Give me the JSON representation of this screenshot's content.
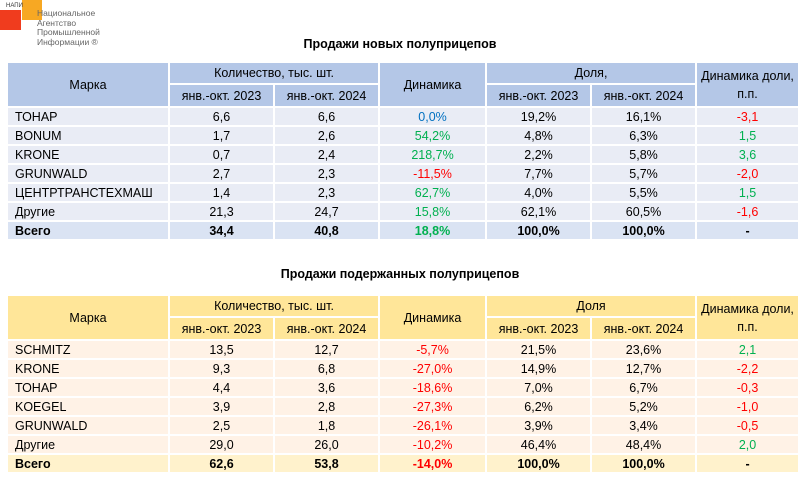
{
  "logo": {
    "abbr": "НАПИ",
    "name": "Национальное Агентство Промышленной Информации ®"
  },
  "colors": {
    "positive": "#00b050",
    "negative": "#ff0000",
    "zero": "#0070c0",
    "blue_header": "#b4c7e7",
    "yellow_header": "#ffe699"
  },
  "tables": [
    {
      "title": "Продажи новых полуприцепов",
      "headers": {
        "brand": "Марка",
        "qty": "Количество, тыс. шт.",
        "period_2023": "янв.-окт. 2023",
        "period_2024": "янв.-окт. 2024",
        "dynamics": "Динамика",
        "share": "Доля,",
        "share_dyn": "Динамика доли, п.п."
      },
      "rows": [
        {
          "brand": "ТОНАР",
          "q2023": "6,6",
          "q2024": "6,6",
          "dyn": "0,0%",
          "dyn_sign": "zero",
          "s2023": "19,2%",
          "s2024": "16,1%",
          "sdyn": "-3,1",
          "sdyn_sign": "neg"
        },
        {
          "brand": "BONUM",
          "q2023": "1,7",
          "q2024": "2,6",
          "dyn": "54,2%",
          "dyn_sign": "pos",
          "s2023": "4,8%",
          "s2024": "6,3%",
          "sdyn": "1,5",
          "sdyn_sign": "pos"
        },
        {
          "brand": "KRONE",
          "q2023": "0,7",
          "q2024": "2,4",
          "dyn": "218,7%",
          "dyn_sign": "pos",
          "s2023": "2,2%",
          "s2024": "5,8%",
          "sdyn": "3,6",
          "sdyn_sign": "pos"
        },
        {
          "brand": "GRUNWALD",
          "q2023": "2,7",
          "q2024": "2,3",
          "dyn": "-11,5%",
          "dyn_sign": "neg",
          "s2023": "7,7%",
          "s2024": "5,7%",
          "sdyn": "-2,0",
          "sdyn_sign": "neg"
        },
        {
          "brand": "ЦЕНТРТРАНСТЕХМАШ",
          "q2023": "1,4",
          "q2024": "2,3",
          "dyn": "62,7%",
          "dyn_sign": "pos",
          "s2023": "4,0%",
          "s2024": "5,5%",
          "sdyn": "1,5",
          "sdyn_sign": "pos"
        },
        {
          "brand": "Другие",
          "q2023": "21,3",
          "q2024": "24,7",
          "dyn": "15,8%",
          "dyn_sign": "pos",
          "s2023": "62,1%",
          "s2024": "60,5%",
          "sdyn": "-1,6",
          "sdyn_sign": "neg"
        }
      ],
      "total": {
        "brand": "Всего",
        "q2023": "34,4",
        "q2024": "40,8",
        "dyn": "18,8%",
        "dyn_sign": "pos",
        "s2023": "100,0%",
        "s2024": "100,0%",
        "sdyn": "-",
        "sdyn_sign": ""
      }
    },
    {
      "title": "Продажи подержанных полуприцепов",
      "headers": {
        "brand": "Марка",
        "qty": "Количество, тыс. шт.",
        "period_2023": "янв.-окт. 2023",
        "period_2024": "янв.-окт. 2024",
        "dynamics": "Динамика",
        "share": "Доля",
        "share_dyn": "Динамика доли, п.п."
      },
      "rows": [
        {
          "brand": "SCHMITZ",
          "q2023": "13,5",
          "q2024": "12,7",
          "dyn": "-5,7%",
          "dyn_sign": "neg",
          "s2023": "21,5%",
          "s2024": "23,6%",
          "sdyn": "2,1",
          "sdyn_sign": "pos"
        },
        {
          "brand": "KRONE",
          "q2023": "9,3",
          "q2024": "6,8",
          "dyn": "-27,0%",
          "dyn_sign": "neg",
          "s2023": "14,9%",
          "s2024": "12,7%",
          "sdyn": "-2,2",
          "sdyn_sign": "neg"
        },
        {
          "brand": "ТОНАР",
          "q2023": "4,4",
          "q2024": "3,6",
          "dyn": "-18,6%",
          "dyn_sign": "neg",
          "s2023": "7,0%",
          "s2024": "6,7%",
          "sdyn": "-0,3",
          "sdyn_sign": "neg"
        },
        {
          "brand": "KOEGEL",
          "q2023": "3,9",
          "q2024": "2,8",
          "dyn": "-27,3%",
          "dyn_sign": "neg",
          "s2023": "6,2%",
          "s2024": "5,2%",
          "sdyn": "-1,0",
          "sdyn_sign": "neg"
        },
        {
          "brand": "GRUNWALD",
          "q2023": "2,5",
          "q2024": "1,8",
          "dyn": "-26,1%",
          "dyn_sign": "neg",
          "s2023": "3,9%",
          "s2024": "3,4%",
          "sdyn": "-0,5",
          "sdyn_sign": "neg"
        },
        {
          "brand": "Другие",
          "q2023": "29,0",
          "q2024": "26,0",
          "dyn": "-10,2%",
          "dyn_sign": "neg",
          "s2023": "46,4%",
          "s2024": "48,4%",
          "sdyn": "2,0",
          "sdyn_sign": "pos"
        }
      ],
      "total": {
        "brand": "Всего",
        "q2023": "62,6",
        "q2024": "53,8",
        "dyn": "-14,0%",
        "dyn_sign": "neg",
        "s2023": "100,0%",
        "s2024": "100,0%",
        "sdyn": "-",
        "sdyn_sign": ""
      }
    }
  ]
}
